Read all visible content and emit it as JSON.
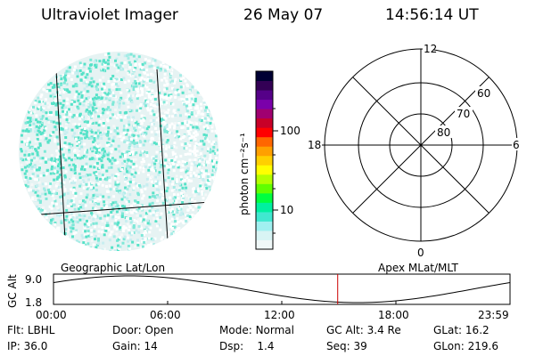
{
  "header": {
    "instrument": "Ultraviolet Imager",
    "date": "26 May 07",
    "time": "14:56:14 UT"
  },
  "colorbar": {
    "unit_label": "photon cm⁻²s⁻¹",
    "ticks": [
      {
        "label": "100",
        "value": 100
      },
      {
        "label": "10",
        "value": 10
      }
    ],
    "colors": [
      "#000033",
      "#330055",
      "#550088",
      "#7a00aa",
      "#a00070",
      "#c80028",
      "#ff0000",
      "#ff6600",
      "#ffa000",
      "#ffd000",
      "#ffff00",
      "#b4ff00",
      "#60ff00",
      "#00ff40",
      "#00f0a0",
      "#40e8d0",
      "#a0f0f0",
      "#d8f4f4",
      "#f0f8f8"
    ]
  },
  "polar_plot": {
    "mlt_labels": {
      "top": "12",
      "left": "18",
      "right": "6",
      "bottom": "0"
    },
    "lat_labels": [
      {
        "label": "60",
        "value": 60
      },
      {
        "label": "70",
        "value": 70
      },
      {
        "label": "80",
        "value": 80
      }
    ]
  },
  "timeline": {
    "ylabel": "GC Alt",
    "ytick_top": "9.0",
    "ytick_bottom": "1.8",
    "left_caption": "Geographic Lat/Lon",
    "right_caption": "Apex MLat/MLT",
    "xticks": [
      "00:00",
      "06:00",
      "12:00",
      "18:00",
      "23:59"
    ],
    "current_time_hours": 14.94,
    "marker_color": "#cc0000"
  },
  "status": {
    "row1": [
      {
        "key": "Flt:",
        "value": "LBHL"
      },
      {
        "key": "Door:",
        "value": "Open"
      },
      {
        "key": "Mode:",
        "value": "Normal"
      },
      {
        "key": "GC Alt:",
        "value": "3.4 Re"
      },
      {
        "key": "GLat:",
        "value": "16.2"
      }
    ],
    "row2": [
      {
        "key": "IP:",
        "value": "36.0"
      },
      {
        "key": "Gain:",
        "value": "14"
      },
      {
        "key": "Dsp:",
        "value": "1.4"
      },
      {
        "key": "Seq:",
        "value": "39"
      },
      {
        "key": "GLon:",
        "value": "219.6"
      }
    ]
  }
}
